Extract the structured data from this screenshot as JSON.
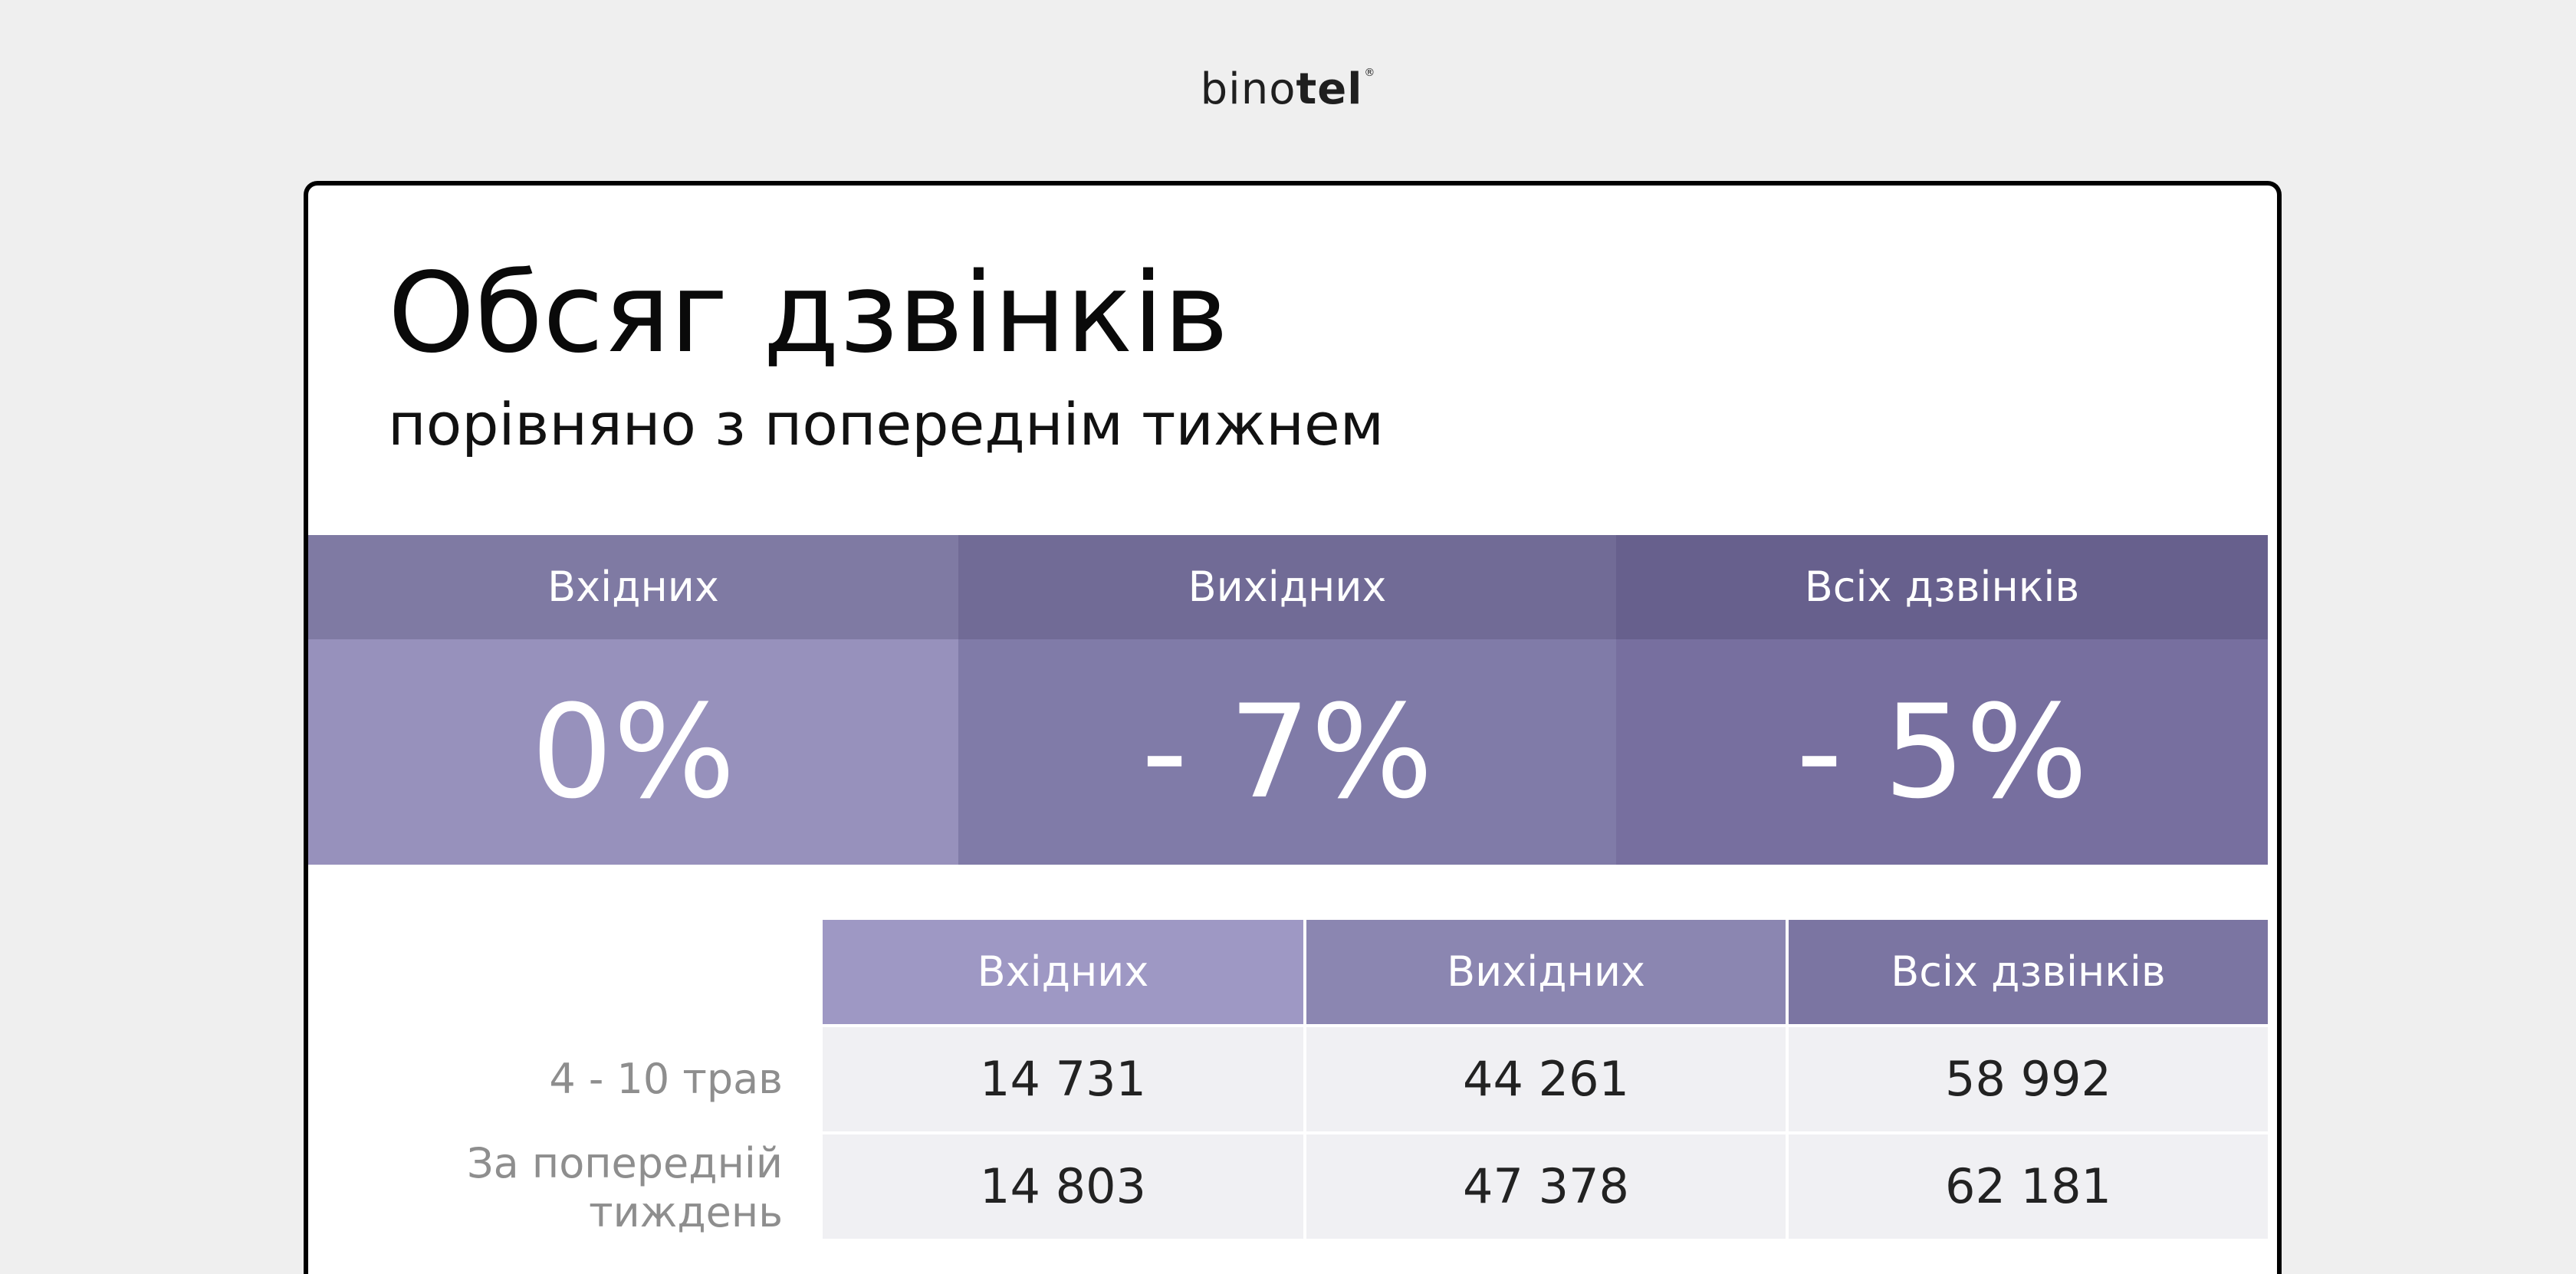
{
  "logo": {
    "part_light": "bino",
    "part_bold": "tel",
    "reg_mark": "®"
  },
  "header": {
    "title": "Обсяг дзвінків",
    "subtitle": "порівняно з попереднім тижнем"
  },
  "stats": [
    {
      "label": "Вхідних",
      "value": "0%"
    },
    {
      "label": "Вихідних",
      "value": "- 7%"
    },
    {
      "label": "Всіх дзвінків",
      "value": "- 5%"
    }
  ],
  "table": {
    "columns": [
      "Вхідних",
      "Вихідних",
      "Всіх дзвінків"
    ],
    "rows": [
      {
        "label_line1": "4 - 10 трав",
        "label_line2": "",
        "values": [
          "14 731",
          "44 261",
          "58 992"
        ]
      },
      {
        "label_line1": "За попередній",
        "label_line2": "тиждень",
        "values": [
          "14 803",
          "47 378",
          "62 181"
        ]
      }
    ]
  },
  "colors": {
    "background": "#efefef",
    "accent_purple": "#7f7aa3",
    "card_border": "#000000"
  }
}
